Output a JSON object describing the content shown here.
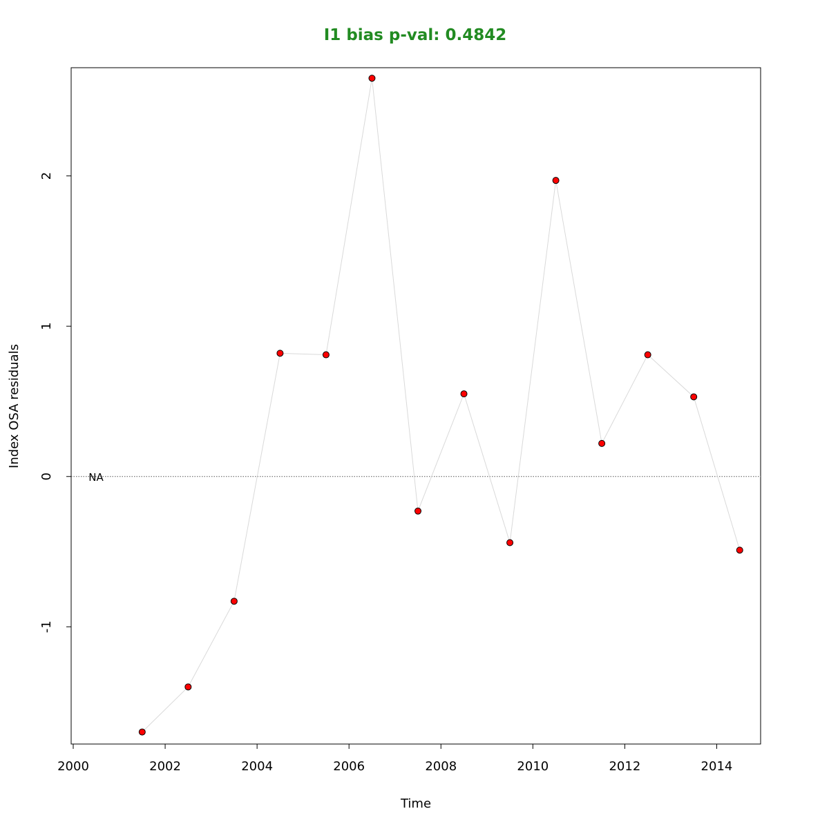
{
  "chart_data": {
    "type": "scatter",
    "title": "I1 bias p-val: 0.4842",
    "title_color": "#228B22",
    "xlabel": "Time",
    "ylabel": "Index OSA residuals",
    "xlim": [
      2000,
      2015
    ],
    "ylim": [
      -1.78,
      2.72
    ],
    "x_ticks": [
      2000,
      2002,
      2004,
      2006,
      2008,
      2010,
      2012,
      2014
    ],
    "x_tick_labels": [
      "2000",
      "2002",
      "2004",
      "2006",
      "2008",
      "2010",
      "2012",
      "2014"
    ],
    "y_ticks": [
      -1,
      0,
      1,
      2
    ],
    "y_tick_labels": [
      "-1",
      "0",
      "1",
      "2"
    ],
    "reference_line": {
      "y": 0,
      "style": "dotted",
      "color": "#555555"
    },
    "annotation": {
      "text": "NA",
      "x": 2000.5,
      "y": 0
    },
    "connect_points": true,
    "line_color": "#d9d9d9",
    "point_fill": "#ff0000",
    "point_stroke": "#000000",
    "grid": false,
    "series": [
      {
        "x": [
          2001.5,
          2002.5,
          2003.5,
          2004.5,
          2005.5,
          2006.5,
          2007.5,
          2008.5,
          2009.5,
          2010.5,
          2011.5,
          2012.5,
          2013.5,
          2014.5
        ],
        "y": [
          -1.7,
          -1.4,
          -0.83,
          0.82,
          0.81,
          2.65,
          -0.23,
          0.55,
          -0.44,
          1.97,
          0.22,
          0.81,
          0.53,
          -0.49
        ]
      }
    ]
  }
}
